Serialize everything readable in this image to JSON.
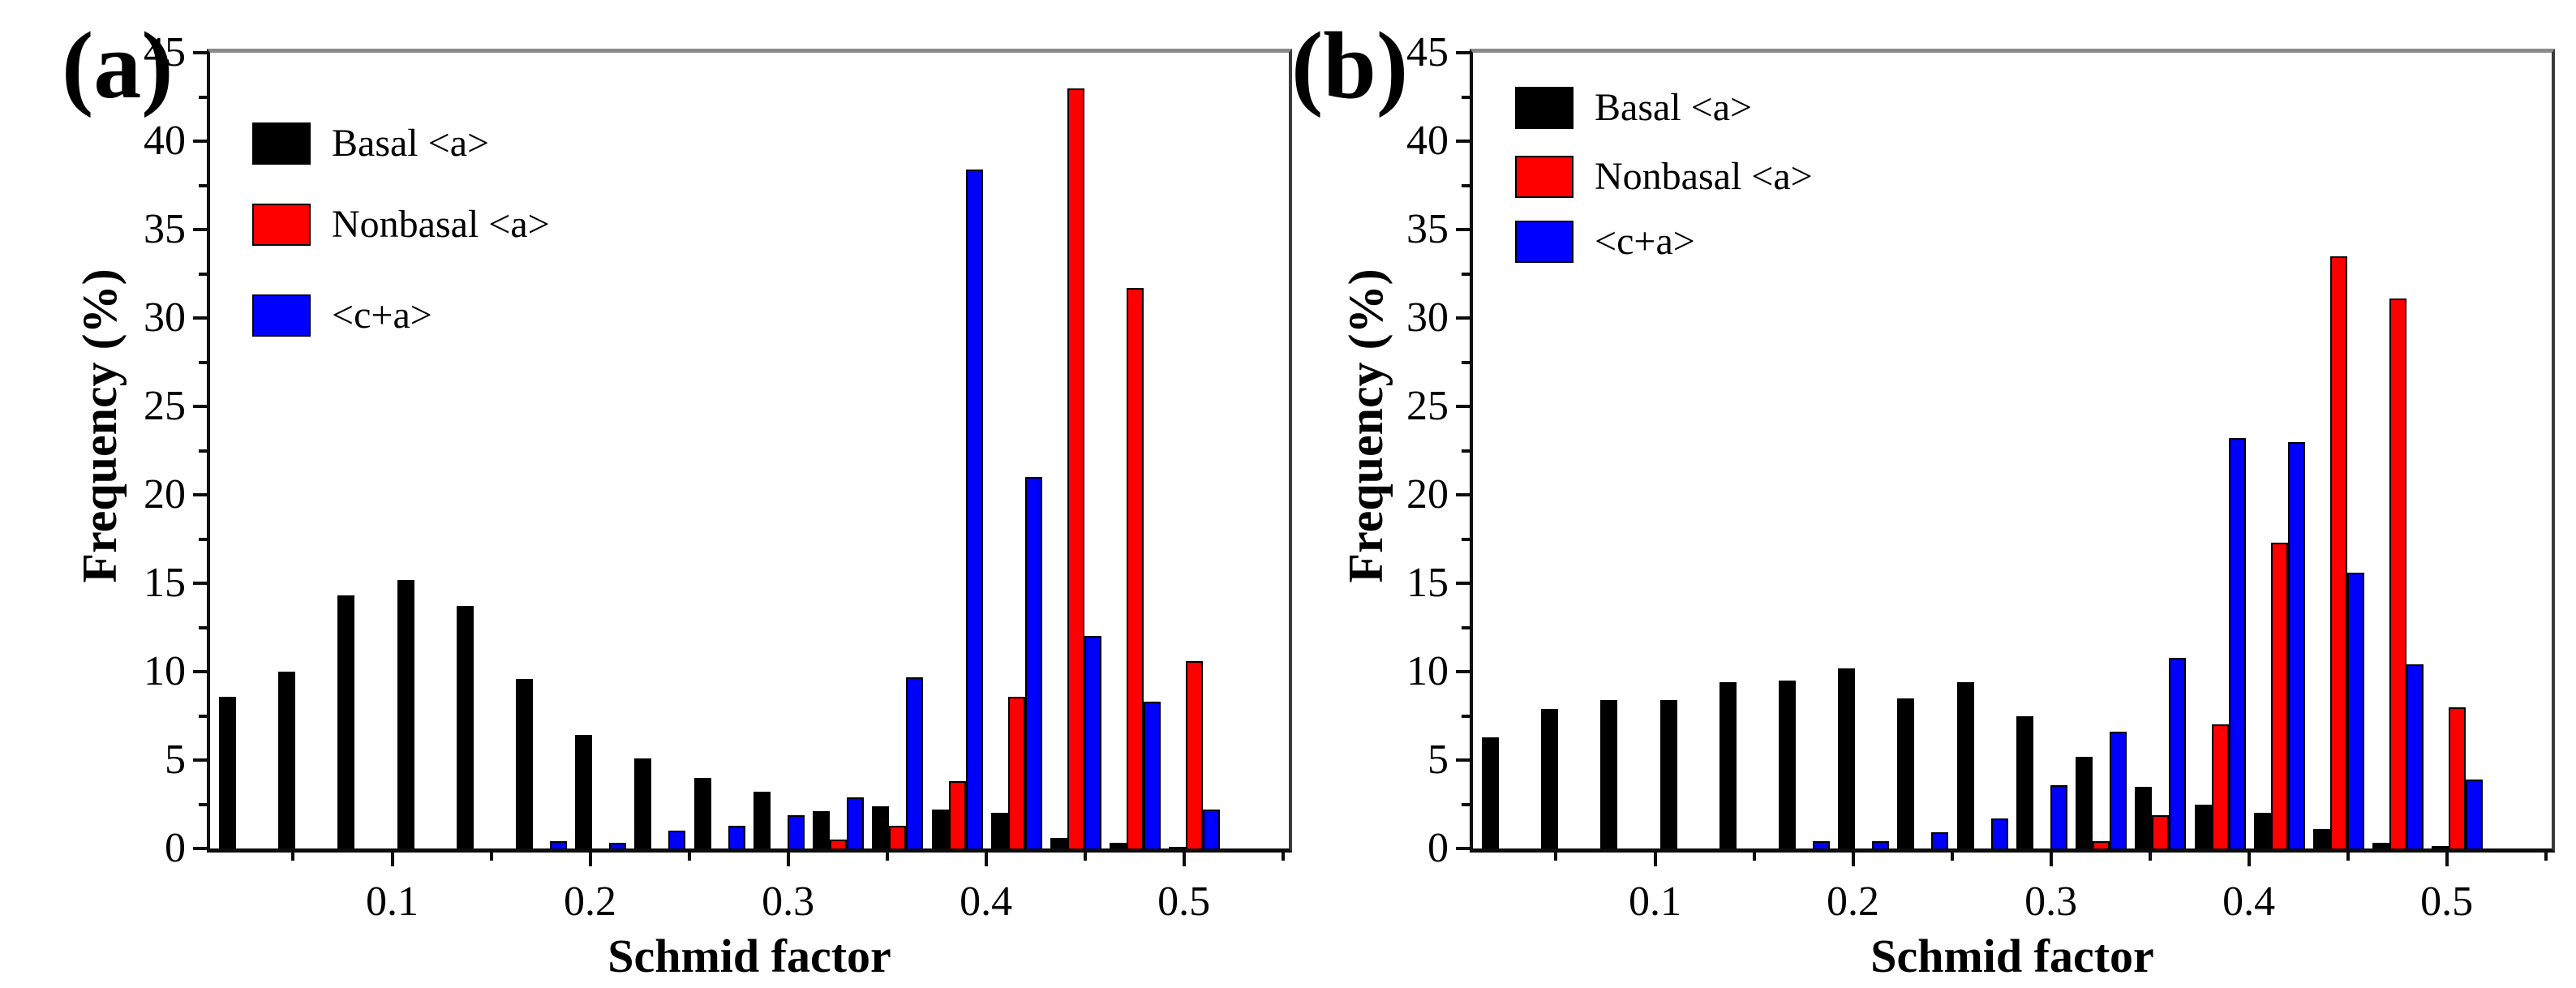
{
  "figure": {
    "background": "#ffffff",
    "panel_count": 2
  },
  "chart_data": [
    {
      "type": "bar",
      "panel_label": "(a)",
      "xlabel": "Schmid factor",
      "ylabel": "Frequency (%)",
      "xlim": [
        0.008,
        0.553
      ],
      "ylim": [
        0,
        45
      ],
      "grid": false,
      "legend_position": "top-left",
      "x_ticks": {
        "values": [
          0.1,
          0.2,
          0.3,
          0.4,
          0.5
        ],
        "labels": [
          "0.1",
          "0.2",
          "0.3",
          "0.4",
          "0.5"
        ]
      },
      "x_minor_ticks": [
        0.05,
        0.15,
        0.25,
        0.35,
        0.45,
        0.55
      ],
      "y_ticks": {
        "values": [
          0,
          5,
          10,
          15,
          20,
          25,
          30,
          35,
          40,
          45
        ],
        "labels": [
          "0",
          "5",
          "10",
          "15",
          "20",
          "25",
          "30",
          "35",
          "40",
          "45"
        ]
      },
      "y_minor_ticks": [
        2.5,
        7.5,
        12.5,
        17.5,
        22.5,
        27.5,
        32.5,
        37.5,
        42.5
      ],
      "bin_centers": [
        0.025,
        0.055,
        0.085,
        0.115,
        0.145,
        0.175,
        0.205,
        0.235,
        0.265,
        0.295,
        0.325,
        0.355,
        0.385,
        0.415,
        0.445,
        0.475,
        0.505
      ],
      "series": [
        {
          "name": "Basal <a>",
          "color": "#000000",
          "values": [
            8.6,
            10.0,
            14.3,
            15.2,
            13.7,
            9.6,
            6.4,
            5.1,
            4.0,
            3.2,
            2.1,
            2.4,
            2.2,
            2.0,
            0.6,
            0.3,
            0.1
          ]
        },
        {
          "name": "Nonbasal <a>",
          "color": "#fe0000",
          "values": [
            0,
            0,
            0,
            0,
            0,
            0,
            0,
            0,
            0,
            0,
            0.5,
            1.3,
            3.8,
            8.6,
            43.0,
            31.7,
            10.6
          ]
        },
        {
          "name": "<c+a>",
          "color": "#0000fe",
          "values": [
            0,
            0,
            0,
            0,
            0,
            0.4,
            0.3,
            1.0,
            1.3,
            1.9,
            2.9,
            9.7,
            38.4,
            21.0,
            12.0,
            8.3,
            2.2
          ]
        }
      ]
    },
    {
      "type": "bar",
      "panel_label": "(b)",
      "xlabel": "Schmid factor",
      "ylabel": "Frequency (%)",
      "xlim": [
        0.008,
        0.553
      ],
      "ylim": [
        0,
        45
      ],
      "grid": false,
      "legend_position": "top-left",
      "x_ticks": {
        "values": [
          0.1,
          0.2,
          0.3,
          0.4,
          0.5
        ],
        "labels": [
          "0.1",
          "0.2",
          "0.3",
          "0.4",
          "0.5"
        ]
      },
      "x_minor_ticks": [
        0.05,
        0.15,
        0.25,
        0.35,
        0.45,
        0.55
      ],
      "y_ticks": {
        "values": [
          0,
          5,
          10,
          15,
          20,
          25,
          30,
          35,
          40,
          45
        ],
        "labels": [
          "0",
          "5",
          "10",
          "15",
          "20",
          "25",
          "30",
          "35",
          "40",
          "45"
        ]
      },
      "y_minor_ticks": [
        2.5,
        7.5,
        12.5,
        17.5,
        22.5,
        27.5,
        32.5,
        37.5,
        42.5
      ],
      "bin_centers": [
        0.025,
        0.055,
        0.085,
        0.115,
        0.145,
        0.175,
        0.205,
        0.235,
        0.265,
        0.295,
        0.325,
        0.355,
        0.385,
        0.415,
        0.445,
        0.475,
        0.505
      ],
      "series": [
        {
          "name": "Basal <a>",
          "color": "#000000",
          "values": [
            6.3,
            7.9,
            8.4,
            8.4,
            9.4,
            9.5,
            10.2,
            8.5,
            9.4,
            7.5,
            5.2,
            3.5,
            2.5,
            2.0,
            1.1,
            0.3,
            0.15
          ]
        },
        {
          "name": "Nonbasal <a>",
          "color": "#fe0000",
          "values": [
            0,
            0,
            0,
            0,
            0,
            0,
            0,
            0,
            0,
            0,
            0.4,
            1.9,
            7.0,
            17.3,
            33.5,
            31.1,
            8.0
          ]
        },
        {
          "name": "<c+a>",
          "color": "#0000fe",
          "values": [
            0,
            0,
            0,
            0,
            0,
            0.4,
            0.4,
            0.9,
            1.7,
            3.6,
            6.6,
            10.8,
            23.2,
            23.0,
            15.6,
            10.4,
            3.9
          ]
        }
      ]
    }
  ]
}
